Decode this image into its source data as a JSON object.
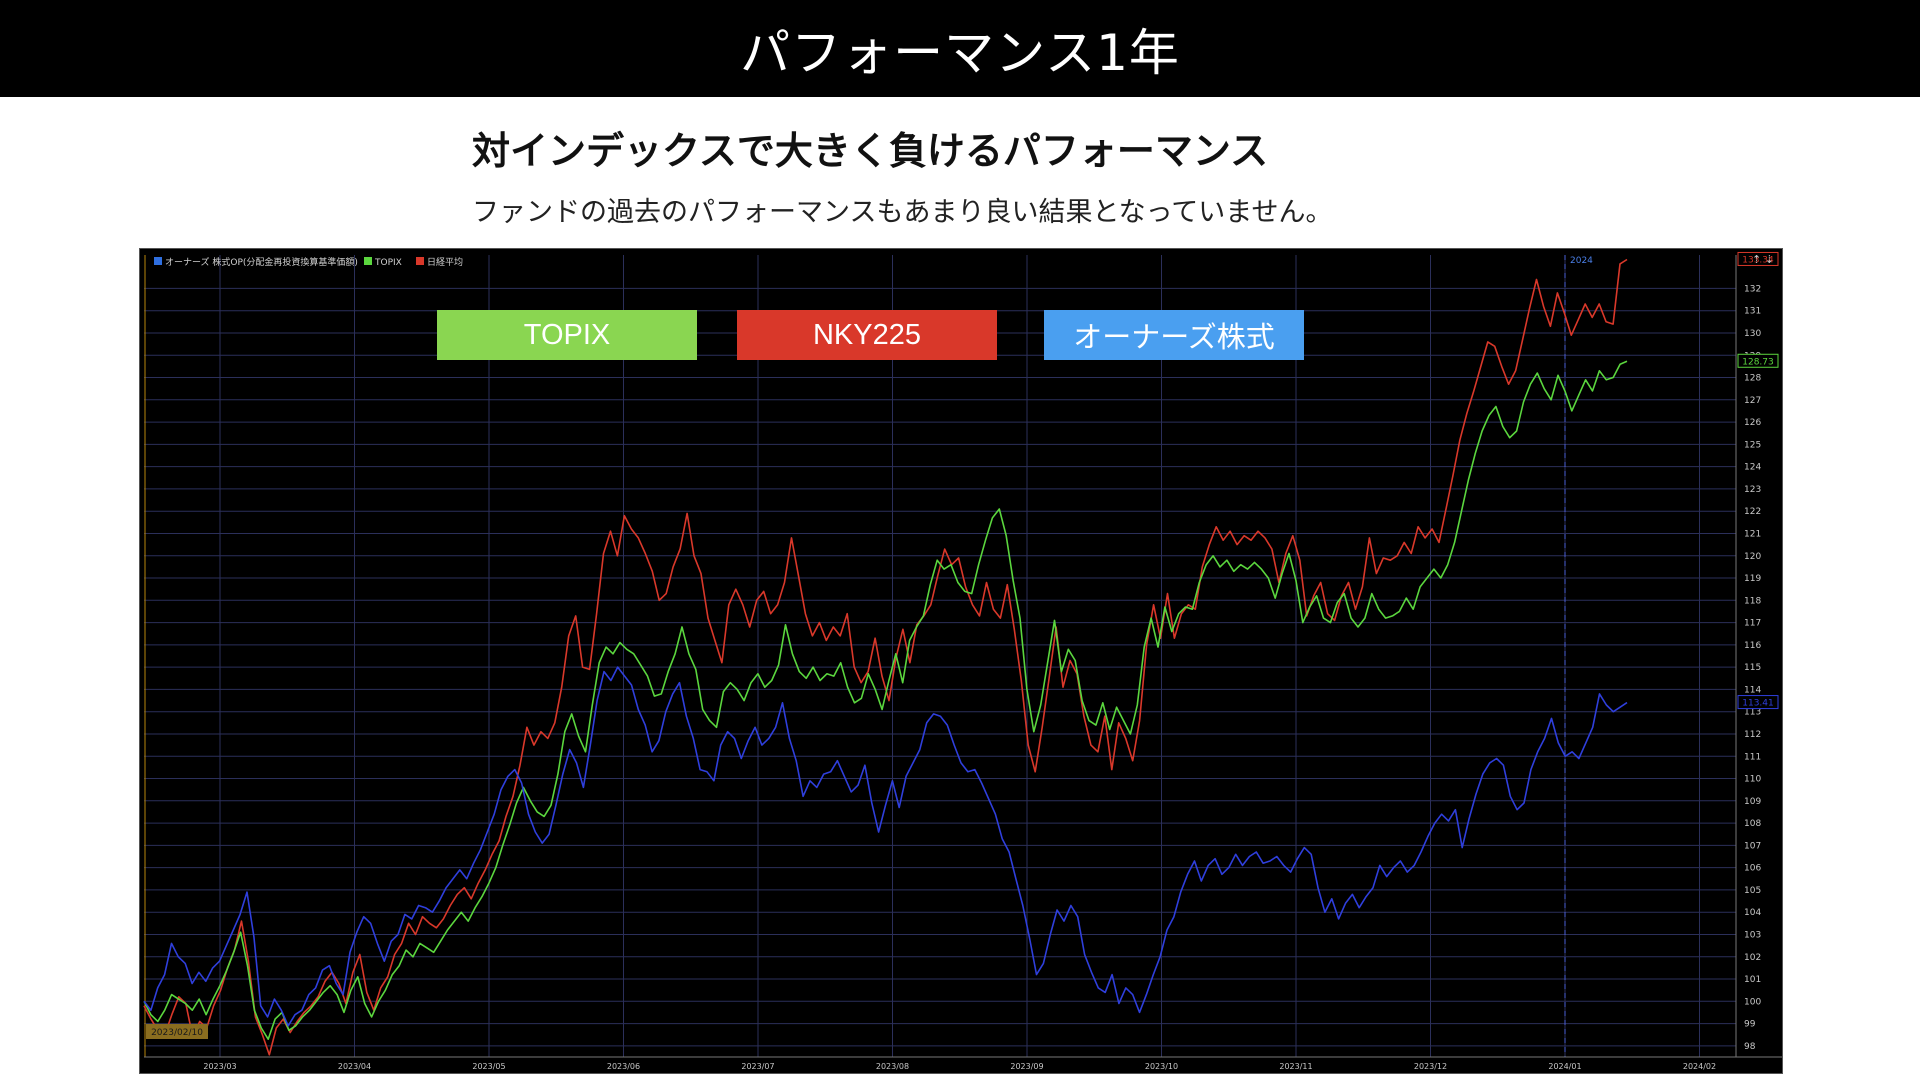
{
  "header": {
    "title": "パフォーマンス1年"
  },
  "subheading": "対インデックスで大きく負けるパフォーマンス",
  "description": "ファンドの過去のパフォーマンスもあまり良い結果となっていません。",
  "legend_boxes": [
    {
      "label": "TOPIX",
      "color": "#8ad651"
    },
    {
      "label": "NKY225",
      "color": "#d9382a"
    },
    {
      "label": "オーナーズ株式",
      "color": "#4a9ff0"
    }
  ],
  "chart_data": {
    "type": "line",
    "inner_legend": [
      "オーナーズ 株式OP(分配金再投資換算基準価額)",
      "TOPIX",
      "日経平均"
    ],
    "divider_label": "2024",
    "start_date_label": "2023/02/10",
    "x_ticks": [
      "2023/03",
      "2023/04",
      "2023/05",
      "2023/06",
      "2023/07",
      "2023/08",
      "2023/09",
      "2023/10",
      "2023/11",
      "2023/12",
      "2024/01",
      "2024/02"
    ],
    "ylim": [
      97.5,
      133.5
    ],
    "y_ticks": [
      98,
      99,
      100,
      101,
      102,
      103,
      104,
      105,
      106,
      107,
      108,
      109,
      110,
      111,
      112,
      113,
      114,
      115,
      116,
      117,
      118,
      119,
      120,
      121,
      122,
      123,
      124,
      125,
      126,
      127,
      128,
      129,
      130,
      131,
      132
    ],
    "grid": true,
    "series": [
      {
        "name": "日経平均",
        "color": "#d9382a",
        "last_label": "133.34",
        "values": [
          99.8,
          99.2,
          98.7,
          98.5,
          99.4,
          100.2,
          99.9,
          98.4,
          99.1,
          98.8,
          99.8,
          100.5,
          101.5,
          102.3,
          103.6,
          101.8,
          99.3,
          98.5,
          97.6,
          98.8,
          99.2,
          98.6,
          99.1,
          99.5,
          99.8,
          100.2,
          100.9,
          101.3,
          100.8,
          99.9,
          101.3,
          102.1,
          100.4,
          99.6,
          100.6,
          101.1,
          102.1,
          102.6,
          103.5,
          103.0,
          103.8,
          103.5,
          103.3,
          103.7,
          104.3,
          104.8,
          105.1,
          104.6,
          105.3,
          105.9,
          106.6,
          107.2,
          108.3,
          109.2,
          110.6,
          112.3,
          111.5,
          112.1,
          111.8,
          112.5,
          114.1,
          116.4,
          117.3,
          115.0,
          114.9,
          117.4,
          120.1,
          121.1,
          120.0,
          121.8,
          121.2,
          120.8,
          120.1,
          119.3,
          118.0,
          118.3,
          119.5,
          120.3,
          121.9,
          120.0,
          119.2,
          117.2,
          116.2,
          115.2,
          117.8,
          118.5,
          117.8,
          116.8,
          118.0,
          118.4,
          117.4,
          117.8,
          118.8,
          120.8,
          119.1,
          117.4,
          116.4,
          117.0,
          116.2,
          116.8,
          116.4,
          117.4,
          115.0,
          114.3,
          114.8,
          116.3,
          114.6,
          113.5,
          115.4,
          116.7,
          115.2,
          116.9,
          117.3,
          117.8,
          119.1,
          120.3,
          119.6,
          119.9,
          118.6,
          117.8,
          117.3,
          118.8,
          117.6,
          117.2,
          118.7,
          116.7,
          114.4,
          111.5,
          110.3,
          112.3,
          114.5,
          116.8,
          114.1,
          115.3,
          114.7,
          112.8,
          111.5,
          111.2,
          112.8,
          110.4,
          112.5,
          111.8,
          110.8,
          112.6,
          116.0,
          117.8,
          116.3,
          118.3,
          116.3,
          117.4,
          117.8,
          117.6,
          119.5,
          120.5,
          121.3,
          120.7,
          121.1,
          120.5,
          120.9,
          120.7,
          121.1,
          120.8,
          120.3,
          118.8,
          120.1,
          120.9,
          119.8,
          117.3,
          118.2,
          118.8,
          117.4,
          117.1,
          118.2,
          118.8,
          117.6,
          118.6,
          120.8,
          119.2,
          119.9,
          119.8,
          120.0,
          120.6,
          120.1,
          121.3,
          120.8,
          121.2,
          120.6,
          122.1,
          123.6,
          125.2,
          126.4,
          127.4,
          128.5,
          129.6,
          129.4,
          128.5,
          127.7,
          128.3,
          129.7,
          131.1,
          132.4,
          131.2,
          130.3,
          131.8,
          130.9,
          129.9,
          130.6,
          131.3,
          130.7,
          131.3,
          130.5,
          130.4,
          133.1,
          133.3
        ]
      },
      {
        "name": "TOPIX",
        "color": "#5bd63e",
        "last_label": "128.73",
        "values": [
          100.0,
          99.4,
          99.1,
          99.6,
          100.3,
          100.1,
          99.9,
          99.6,
          100.1,
          99.4,
          100.1,
          100.7,
          101.4,
          102.2,
          103.1,
          101.6,
          99.6,
          98.8,
          98.3,
          99.2,
          99.5,
          98.7,
          98.9,
          99.3,
          99.6,
          100.0,
          100.4,
          100.7,
          100.3,
          99.5,
          100.5,
          101.1,
          99.9,
          99.3,
          100.0,
          100.5,
          101.2,
          101.6,
          102.3,
          102.0,
          102.6,
          102.4,
          102.2,
          102.7,
          103.2,
          103.6,
          104.0,
          103.6,
          104.2,
          104.7,
          105.3,
          106.0,
          107.0,
          107.9,
          108.9,
          109.6,
          109.0,
          108.5,
          108.3,
          108.8,
          110.2,
          112.1,
          112.9,
          111.9,
          111.2,
          113.3,
          115.2,
          115.9,
          115.6,
          116.1,
          115.8,
          115.6,
          115.1,
          114.6,
          113.7,
          113.8,
          114.8,
          115.6,
          116.8,
          115.6,
          114.9,
          113.1,
          112.6,
          112.3,
          113.9,
          114.3,
          114.0,
          113.5,
          114.3,
          114.7,
          114.1,
          114.4,
          115.1,
          116.9,
          115.6,
          114.8,
          114.5,
          115.0,
          114.4,
          114.7,
          114.6,
          115.2,
          114.1,
          113.4,
          113.6,
          114.7,
          114.0,
          113.1,
          114.4,
          115.6,
          114.3,
          116.2,
          116.8,
          117.3,
          118.7,
          119.8,
          119.4,
          119.6,
          118.8,
          118.4,
          118.3,
          119.6,
          120.7,
          121.7,
          122.1,
          120.9,
          118.9,
          117.2,
          114.0,
          112.1,
          113.3,
          115.2,
          117.1,
          114.8,
          115.8,
          115.3,
          113.5,
          112.6,
          112.4,
          113.4,
          112.2,
          113.2,
          112.6,
          112.0,
          113.3,
          115.9,
          117.2,
          115.9,
          117.7,
          116.6,
          117.4,
          117.7,
          117.6,
          118.8,
          119.6,
          120.0,
          119.5,
          119.8,
          119.3,
          119.6,
          119.4,
          119.7,
          119.4,
          119.0,
          118.1,
          119.2,
          120.1,
          118.9,
          117.0,
          117.7,
          118.2,
          117.2,
          117.0,
          117.9,
          118.3,
          117.2,
          116.8,
          117.2,
          118.3,
          117.6,
          117.2,
          117.3,
          117.5,
          118.1,
          117.6,
          118.6,
          119.0,
          119.4,
          119.0,
          119.6,
          120.6,
          122.0,
          123.4,
          124.6,
          125.6,
          126.3,
          126.7,
          125.8,
          125.3,
          125.6,
          126.9,
          127.7,
          128.2,
          127.5,
          127.0,
          128.1,
          127.4,
          126.5,
          127.2,
          127.9,
          127.4,
          128.3,
          127.9,
          128.0,
          128.6,
          128.73
        ]
      },
      {
        "name": "オーナーズ 株式OP(分配金再投資換算基準価額)",
        "color": "#2f3fdc",
        "last_label": "113.41",
        "values": [
          100.0,
          99.6,
          100.6,
          101.2,
          102.6,
          102.0,
          101.7,
          100.8,
          101.3,
          100.9,
          101.5,
          101.8,
          102.5,
          103.2,
          103.9,
          104.9,
          102.9,
          99.8,
          99.3,
          100.1,
          99.6,
          98.9,
          99.4,
          99.6,
          100.3,
          100.6,
          101.4,
          101.6,
          100.8,
          100.3,
          102.2,
          103.1,
          103.8,
          103.5,
          102.6,
          101.8,
          102.7,
          103.0,
          103.9,
          103.7,
          104.3,
          104.2,
          104.0,
          104.5,
          105.1,
          105.5,
          105.9,
          105.5,
          106.2,
          106.8,
          107.6,
          108.4,
          109.5,
          110.1,
          110.4,
          109.8,
          108.4,
          107.6,
          107.1,
          107.5,
          108.8,
          110.2,
          111.3,
          110.7,
          109.6,
          111.5,
          113.5,
          114.8,
          114.4,
          115.0,
          114.6,
          114.2,
          113.1,
          112.4,
          111.2,
          111.7,
          113.0,
          113.8,
          114.3,
          112.8,
          111.8,
          110.4,
          110.3,
          109.9,
          111.5,
          112.1,
          111.8,
          110.9,
          111.7,
          112.3,
          111.5,
          111.8,
          112.3,
          113.4,
          111.8,
          110.8,
          109.2,
          109.9,
          109.6,
          110.2,
          110.3,
          110.8,
          110.1,
          109.4,
          109.7,
          110.6,
          108.9,
          107.6,
          108.8,
          109.9,
          108.7,
          110.1,
          110.7,
          111.3,
          112.5,
          112.9,
          112.8,
          112.4,
          111.5,
          110.7,
          110.3,
          110.4,
          109.8,
          109.1,
          108.4,
          107.3,
          106.7,
          105.5,
          104.3,
          102.8,
          101.2,
          101.7,
          103.0,
          104.1,
          103.6,
          104.3,
          103.8,
          102.1,
          101.3,
          100.6,
          100.4,
          101.2,
          99.9,
          100.6,
          100.3,
          99.5,
          100.3,
          101.2,
          102.0,
          103.2,
          103.8,
          104.9,
          105.7,
          106.3,
          105.4,
          106.1,
          106.4,
          105.7,
          106.0,
          106.6,
          106.1,
          106.5,
          106.7,
          106.2,
          106.3,
          106.5,
          106.1,
          105.8,
          106.4,
          106.9,
          106.6,
          105.1,
          104.0,
          104.6,
          103.7,
          104.4,
          104.8,
          104.2,
          104.7,
          105.1,
          106.1,
          105.6,
          106.0,
          106.3,
          105.8,
          106.1,
          106.7,
          107.4,
          108.0,
          108.4,
          108.1,
          108.6,
          106.9,
          108.2,
          109.3,
          110.2,
          110.7,
          110.9,
          110.6,
          109.2,
          108.6,
          108.9,
          110.4,
          111.2,
          111.8,
          112.7,
          111.6,
          111.0,
          111.2,
          110.9,
          111.6,
          112.3,
          113.8,
          113.3,
          113.0,
          113.2,
          113.41
        ]
      }
    ]
  }
}
